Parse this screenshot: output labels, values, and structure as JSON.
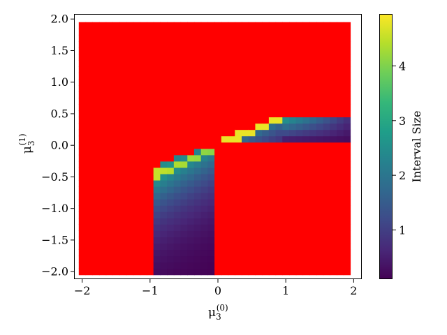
{
  "chart_data": {
    "type": "heatmap",
    "xlabel": {
      "base": "μ",
      "sub": "3",
      "sup": "(0)"
    },
    "ylabel": {
      "base": "μ",
      "sub": "3",
      "sup": "(1)"
    },
    "xlim": [
      -2.12,
      2.12
    ],
    "ylim": [
      -2.12,
      2.08
    ],
    "x_ticks": [
      -2,
      -1,
      0,
      1,
      2
    ],
    "x_tick_labels": [
      "−2",
      "−1",
      "0",
      "1",
      "2"
    ],
    "y_ticks": [
      -2.0,
      -1.5,
      -1.0,
      -0.5,
      0.0,
      0.5,
      1.0,
      1.5,
      2.0
    ],
    "y_tick_labels": [
      "−2.0",
      "−1.5",
      "−1.0",
      "−0.5",
      "0.0",
      "0.5",
      "1.0",
      "1.5",
      "2.0"
    ],
    "grid": false,
    "cell_size": 0.1,
    "x_range": [
      -2.0,
      1.9
    ],
    "y_range": [
      -2.0,
      1.9
    ],
    "background_color": "#ff0000",
    "regions": [
      {
        "x_from": -0.9,
        "x_to": -0.1,
        "y_from": -2.0,
        "y_to": -0.1,
        "corner": "top-left"
      },
      {
        "x_from": 0.1,
        "x_to": 1.9,
        "y_from": 0.1,
        "y_to": 0.4,
        "corner": "bottom-left"
      }
    ],
    "colorbar": {
      "label": "Interval Size",
      "range": [
        0.1,
        4.95
      ],
      "ticks": [
        1,
        2,
        3,
        4
      ],
      "tick_labels": [
        "1",
        "2",
        "3",
        "4"
      ],
      "colormap": "viridis",
      "stops": [
        "#440154",
        "#482878",
        "#3e4a89",
        "#31688e",
        "#26828e",
        "#1f9e89",
        "#35b779",
        "#6ece58",
        "#b5de2b",
        "#fde725"
      ]
    }
  }
}
